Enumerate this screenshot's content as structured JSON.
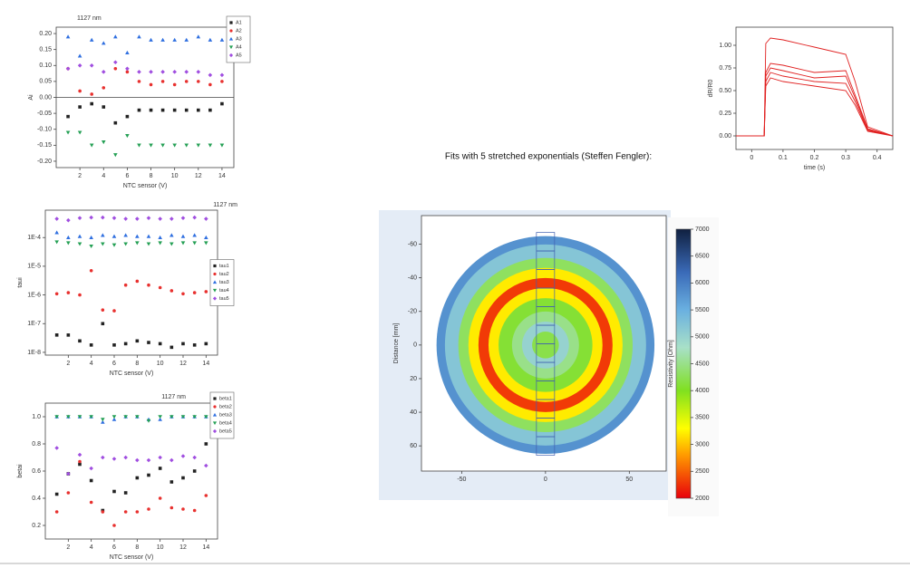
{
  "heading": "Fits with 5 stretched exponentials (Steffen Fengler):",
  "chart_data": [
    {
      "type": "scatter",
      "title": "1127 nm",
      "xlabel": "NTC sensor (V)",
      "ylabel": "Ai",
      "legend": "upper right",
      "zero_line": true,
      "x": [
        1,
        2,
        3,
        4,
        5,
        6,
        7,
        8,
        9,
        10,
        11,
        12,
        13,
        14
      ],
      "xlim": [
        0,
        15
      ],
      "xticks": [
        2,
        4,
        6,
        8,
        10,
        12,
        14
      ],
      "ylim": [
        -0.22,
        0.22
      ],
      "yticks": [
        {
          "value": -0.2,
          "label": "-0.20"
        },
        -0.15,
        {
          "value": -0.1,
          "label": "-0.10"
        },
        -0.05,
        {
          "value": 0,
          "label": "0.00"
        },
        0.05,
        {
          "value": 0.1,
          "label": "0.10"
        },
        0.15,
        {
          "value": 0.2,
          "label": "0.20"
        }
      ],
      "series": [
        {
          "name": "A1",
          "color": "#222222",
          "marker": "square",
          "values": [
            -0.06,
            -0.03,
            -0.02,
            -0.03,
            -0.08,
            -0.06,
            -0.04,
            -0.04,
            -0.04,
            -0.04,
            -0.04,
            -0.04,
            -0.04,
            -0.02
          ]
        },
        {
          "name": "A2",
          "color": "#e8312f",
          "marker": "circle",
          "values": [
            0.09,
            0.02,
            0.01,
            0.03,
            0.09,
            0.08,
            0.05,
            0.04,
            0.05,
            0.04,
            0.05,
            0.05,
            0.04,
            0.05
          ]
        },
        {
          "name": "A3",
          "color": "#2f6fe0",
          "marker": "triangle-up",
          "values": [
            0.19,
            0.13,
            0.18,
            0.17,
            0.19,
            0.14,
            0.19,
            0.18,
            0.18,
            0.18,
            0.18,
            0.19,
            0.18,
            0.18
          ]
        },
        {
          "name": "A4",
          "color": "#25a055",
          "marker": "triangle-down",
          "values": [
            -0.11,
            -0.11,
            -0.15,
            -0.14,
            -0.18,
            -0.12,
            -0.15,
            -0.15,
            -0.15,
            -0.15,
            -0.15,
            -0.15,
            -0.15,
            -0.15
          ]
        },
        {
          "name": "A5",
          "color": "#a04ee0",
          "marker": "diamond",
          "values": [
            0.09,
            0.1,
            0.1,
            0.08,
            0.11,
            0.09,
            0.08,
            0.08,
            0.08,
            0.08,
            0.08,
            0.08,
            0.07,
            0.07
          ]
        }
      ]
    },
    {
      "type": "scatter",
      "title": "1127 nm",
      "xlabel": "NTC sensor (V)",
      "ylabel": "taui",
      "legend": "center right",
      "log_y": true,
      "x": [
        1,
        2,
        3,
        4,
        5,
        6,
        7,
        8,
        9,
        10,
        11,
        12,
        13,
        14
      ],
      "xlim": [
        0,
        15
      ],
      "xticks": [
        2,
        4,
        6,
        8,
        10,
        12,
        14
      ],
      "ylim": [
        8e-09,
        0.0009
      ],
      "yticks": [
        {
          "value": 1e-08,
          "label": "1E-8"
        },
        {
          "value": 1e-07,
          "label": "1E-7"
        },
        {
          "value": 1e-06,
          "label": "1E-6"
        },
        {
          "value": 1e-05,
          "label": "1E-5"
        },
        {
          "value": 0.0001,
          "label": "1E-4"
        }
      ],
      "series": [
        {
          "name": "tau1",
          "color": "#222222",
          "marker": "square",
          "values": [
            4e-08,
            4e-08,
            2.5e-08,
            1.8e-08,
            1e-07,
            1.8e-08,
            2e-08,
            2.5e-08,
            2.2e-08,
            2e-08,
            1.5e-08,
            2e-08,
            1.8e-08,
            2e-08
          ]
        },
        {
          "name": "tau2",
          "color": "#e8312f",
          "marker": "circle",
          "values": [
            1.1e-06,
            1.2e-06,
            1e-06,
            7e-06,
            3e-07,
            2.8e-07,
            2.2e-06,
            3e-06,
            2.2e-06,
            1.8e-06,
            1.4e-06,
            1.1e-06,
            1.2e-06,
            1.3e-06
          ]
        },
        {
          "name": "tau3",
          "color": "#2f6fe0",
          "marker": "triangle-up",
          "values": [
            0.00015,
            0.0001,
            0.00011,
            0.0001,
            0.00012,
            0.00011,
            0.00012,
            0.00011,
            0.00011,
            0.0001,
            0.00012,
            0.00011,
            0.00012,
            0.0001
          ]
        },
        {
          "name": "tau4",
          "color": "#25a055",
          "marker": "triangle-down",
          "values": [
            7e-05,
            6.5e-05,
            6e-05,
            5e-05,
            6e-05,
            5.5e-05,
            6e-05,
            6.5e-05,
            6e-05,
            6.5e-05,
            6e-05,
            6.5e-05,
            6.5e-05,
            6.5e-05
          ]
        },
        {
          "name": "tau5",
          "color": "#a04ee0",
          "marker": "diamond",
          "values": [
            0.00045,
            0.0004,
            0.00048,
            0.0005,
            0.0005,
            0.00048,
            0.00045,
            0.00045,
            0.00048,
            0.00045,
            0.00045,
            0.00048,
            0.0005,
            0.00045
          ]
        }
      ]
    },
    {
      "type": "scatter",
      "title": "1127 nm",
      "xlabel": "NTC sensor (V)",
      "ylabel": "betai",
      "legend": "upper right",
      "x": [
        1,
        2,
        3,
        4,
        5,
        6,
        7,
        8,
        9,
        10,
        11,
        12,
        13,
        14
      ],
      "xlim": [
        0,
        15
      ],
      "xticks": [
        2,
        4,
        6,
        8,
        10,
        12,
        14
      ],
      "ylim": [
        0.1,
        1.1
      ],
      "yticks": [
        0.2,
        0.4,
        0.6,
        0.8,
        {
          "value": 1,
          "label": "1.0"
        }
      ],
      "series": [
        {
          "name": "beta1",
          "color": "#222222",
          "marker": "square",
          "values": [
            0.43,
            0.58,
            0.65,
            0.53,
            0.31,
            0.45,
            0.44,
            0.55,
            0.57,
            0.62,
            0.52,
            0.55,
            0.6,
            0.8
          ]
        },
        {
          "name": "beta2",
          "color": "#e8312f",
          "marker": "circle",
          "values": [
            0.3,
            0.44,
            0.67,
            0.37,
            0.3,
            0.2,
            0.3,
            0.3,
            0.32,
            0.4,
            0.33,
            0.32,
            0.31,
            0.42
          ]
        },
        {
          "name": "beta3",
          "color": "#2f6fe0",
          "marker": "triangle-up",
          "values": [
            1,
            1,
            1,
            1,
            0.96,
            0.98,
            1,
            1,
            0.98,
            0.98,
            1,
            1,
            1,
            1
          ]
        },
        {
          "name": "beta4",
          "color": "#25a055",
          "marker": "triangle-down",
          "values": [
            1,
            1,
            1,
            1,
            0.98,
            1,
            1,
            1,
            0.97,
            1,
            1,
            1,
            1,
            1
          ]
        },
        {
          "name": "beta5",
          "color": "#a04ee0",
          "marker": "diamond",
          "values": [
            0.77,
            0.58,
            0.72,
            0.62,
            0.7,
            0.69,
            0.7,
            0.68,
            0.68,
            0.7,
            0.68,
            0.71,
            0.7,
            0.64
          ]
        }
      ]
    },
    {
      "type": "line",
      "xlabel": "time (s)",
      "ylabel": "dR/R0",
      "x": [
        -0.05,
        0.04,
        0.045,
        0.06,
        0.1,
        0.2,
        0.3,
        0.33,
        0.37,
        0.45
      ],
      "xlim": [
        -0.05,
        0.45
      ],
      "xticks": [
        0,
        0.1,
        0.2,
        0.3,
        0.4
      ],
      "ylim": [
        -0.15,
        1.2
      ],
      "yticks": [
        {
          "value": 0,
          "label": "0.00"
        },
        0.25,
        {
          "value": 0.5,
          "label": "0.50"
        },
        0.75,
        {
          "value": 1,
          "label": "1.00"
        }
      ],
      "series": [
        {
          "color": "#e02020",
          "values": [
            0,
            0,
            1.02,
            1.08,
            1.06,
            0.98,
            0.9,
            0.6,
            0.1,
            0
          ]
        },
        {
          "color": "#e02020",
          "values": [
            0,
            0,
            0.7,
            0.8,
            0.78,
            0.7,
            0.72,
            0.45,
            0.08,
            0
          ]
        },
        {
          "color": "#e02020",
          "values": [
            0,
            0,
            0.66,
            0.75,
            0.72,
            0.64,
            0.66,
            0.42,
            0.07,
            0
          ]
        },
        {
          "color": "#e02020",
          "values": [
            0,
            0,
            0.6,
            0.7,
            0.66,
            0.6,
            0.58,
            0.38,
            0.06,
            0
          ]
        },
        {
          "color": "#e02020",
          "values": [
            0,
            0,
            0.55,
            0.64,
            0.6,
            0.55,
            0.5,
            0.34,
            0.05,
            0
          ]
        }
      ]
    },
    {
      "type": "heatmap",
      "ylabel": "Distance [mm]",
      "clabel": "Resistivity [Ohm]",
      "xlim": [
        -74,
        72
      ],
      "xticks": [
        -50,
        0,
        50
      ],
      "ylim": [
        -77,
        75
      ],
      "yticks": [
        -60,
        -40,
        -20,
        0,
        20,
        40,
        60
      ],
      "radial_profile": {
        "radius": [
          65,
          60,
          52,
          46,
          40,
          34,
          28,
          20,
          14,
          8
        ],
        "values": [
          5800,
          5200,
          4300,
          3200,
          2300,
          3200,
          4100,
          4500,
          5000,
          4200
        ]
      },
      "clim": [
        2000,
        7000
      ],
      "cticks": [
        2000,
        2500,
        3000,
        3500,
        4000,
        4500,
        5000,
        5500,
        6000,
        6500,
        7000
      ],
      "colorscale": [
        [
          2000,
          "#e8000b"
        ],
        [
          2800,
          "#ff9a00"
        ],
        [
          3300,
          "#ffff00"
        ],
        [
          4000,
          "#80e020"
        ],
        [
          4800,
          "#a8e0c8"
        ],
        [
          5500,
          "#6ab0e0"
        ],
        [
          6200,
          "#3a6ab8"
        ],
        [
          7000,
          "#102040"
        ]
      ]
    }
  ]
}
